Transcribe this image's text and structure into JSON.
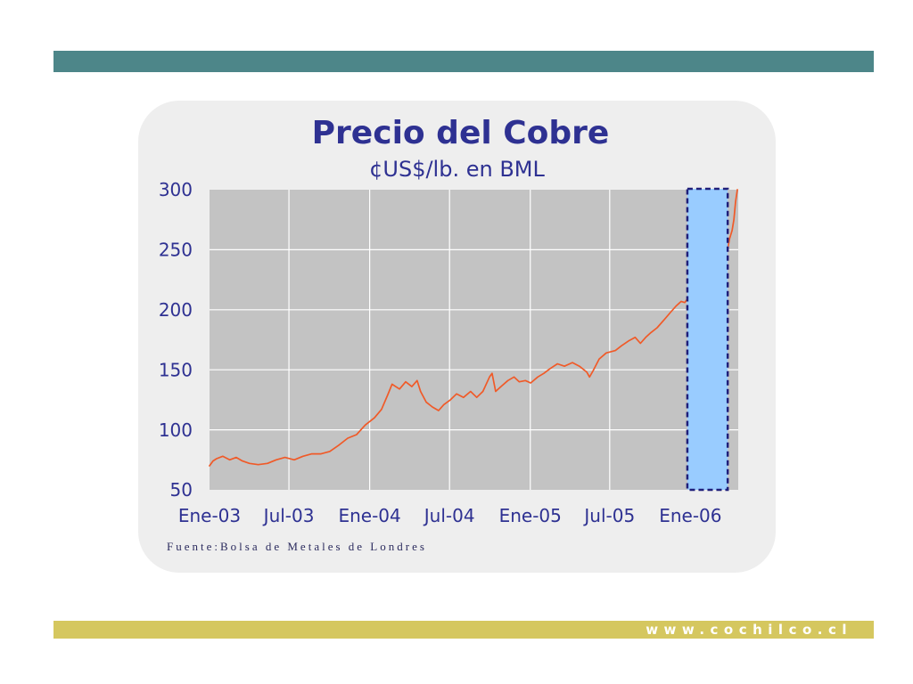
{
  "slide": {
    "source": "Fuente:Bolsa de Metales de Londres",
    "footer_url": "www.cochilco.cl",
    "colors": {
      "top_bar": "#4d8689",
      "bottom_bar": "#d5c75f",
      "panel": "#eeeeee",
      "text": "#2e3192"
    }
  },
  "chart_data": {
    "type": "line",
    "title": "Precio del Cobre",
    "subtitle": "¢US$/lb. en BML",
    "ylim": [
      50,
      300
    ],
    "xlim": [
      "2003-01-01",
      "2006-04-20"
    ],
    "y_ticks": [
      50,
      100,
      150,
      200,
      250,
      300
    ],
    "x_ticks": [
      {
        "date": "2003-01-01",
        "label": "Ene-03"
      },
      {
        "date": "2003-07-01",
        "label": "Jul-03"
      },
      {
        "date": "2004-01-01",
        "label": "Ene-04"
      },
      {
        "date": "2004-07-01",
        "label": "Jul-04"
      },
      {
        "date": "2005-01-01",
        "label": "Ene-05"
      },
      {
        "date": "2005-07-01",
        "label": "Jul-05"
      },
      {
        "date": "2006-01-01",
        "label": "Ene-06"
      }
    ],
    "grid": true,
    "plot_background": "#c3c3c3",
    "grid_color": "#ffffff",
    "series": [
      {
        "color": "#f05a28",
        "points": [
          [
            "2003-01-01",
            70
          ],
          [
            "2003-01-09",
            74
          ],
          [
            "2003-01-17",
            76
          ],
          [
            "2003-01-31",
            78
          ],
          [
            "2003-02-16",
            75
          ],
          [
            "2003-03-03",
            77
          ],
          [
            "2003-03-17",
            74
          ],
          [
            "2003-04-02",
            72
          ],
          [
            "2003-04-22",
            71
          ],
          [
            "2003-05-13",
            72
          ],
          [
            "2003-06-02",
            75
          ],
          [
            "2003-06-22",
            77
          ],
          [
            "2003-07-13",
            75
          ],
          [
            "2003-08-02",
            78
          ],
          [
            "2003-08-22",
            80
          ],
          [
            "2003-09-12",
            80
          ],
          [
            "2003-10-02",
            82
          ],
          [
            "2003-10-22",
            87
          ],
          [
            "2003-11-12",
            93
          ],
          [
            "2003-12-02",
            96
          ],
          [
            "2003-12-22",
            104
          ],
          [
            "2004-01-12",
            110
          ],
          [
            "2004-01-28",
            117
          ],
          [
            "2004-02-11",
            129
          ],
          [
            "2004-02-21",
            138
          ],
          [
            "2004-03-09",
            134
          ],
          [
            "2004-03-23",
            140
          ],
          [
            "2004-04-06",
            136
          ],
          [
            "2004-04-18",
            141
          ],
          [
            "2004-04-26",
            132
          ],
          [
            "2004-05-09",
            123
          ],
          [
            "2004-05-23",
            119
          ],
          [
            "2004-06-06",
            116
          ],
          [
            "2004-06-18",
            121
          ],
          [
            "2004-07-03",
            125
          ],
          [
            "2004-07-17",
            130
          ],
          [
            "2004-08-02",
            127
          ],
          [
            "2004-08-18",
            132
          ],
          [
            "2004-09-01",
            127
          ],
          [
            "2004-09-15",
            132
          ],
          [
            "2004-09-30",
            144
          ],
          [
            "2004-10-06",
            147
          ],
          [
            "2004-10-14",
            132
          ],
          [
            "2004-10-26",
            136
          ],
          [
            "2004-11-11",
            141
          ],
          [
            "2004-11-25",
            144
          ],
          [
            "2004-12-07",
            140
          ],
          [
            "2004-12-21",
            141
          ],
          [
            "2005-01-02",
            139
          ],
          [
            "2005-01-18",
            144
          ],
          [
            "2005-02-01",
            147
          ],
          [
            "2005-02-15",
            151
          ],
          [
            "2005-03-04",
            155
          ],
          [
            "2005-03-20",
            153
          ],
          [
            "2005-04-07",
            156
          ],
          [
            "2005-04-23",
            153
          ],
          [
            "2005-05-10",
            148
          ],
          [
            "2005-05-16",
            144
          ],
          [
            "2005-05-24",
            149
          ],
          [
            "2005-06-07",
            159
          ],
          [
            "2005-06-23",
            164
          ],
          [
            "2005-07-14",
            166
          ],
          [
            "2005-07-28",
            170
          ],
          [
            "2005-08-13",
            174
          ],
          [
            "2005-08-28",
            177
          ],
          [
            "2005-09-09",
            172
          ],
          [
            "2005-09-21",
            177
          ],
          [
            "2005-10-03",
            181
          ],
          [
            "2005-10-17",
            185
          ],
          [
            "2005-11-03",
            192
          ],
          [
            "2005-11-17",
            198
          ],
          [
            "2005-11-29",
            203
          ],
          [
            "2005-12-11",
            207
          ],
          [
            "2005-12-19",
            206
          ],
          [
            "2005-12-25",
            209
          ],
          [
            "2006-03-27",
            251
          ],
          [
            "2006-03-31",
            259
          ],
          [
            "2006-04-06",
            266
          ],
          [
            "2006-04-10",
            275
          ],
          [
            "2006-04-14",
            290
          ],
          [
            "2006-04-18",
            300
          ]
        ]
      }
    ],
    "highlight": {
      "from": "2005-12-25",
      "to": "2006-03-27",
      "fill": "#99ccff",
      "border": "#1f1f7a"
    }
  }
}
